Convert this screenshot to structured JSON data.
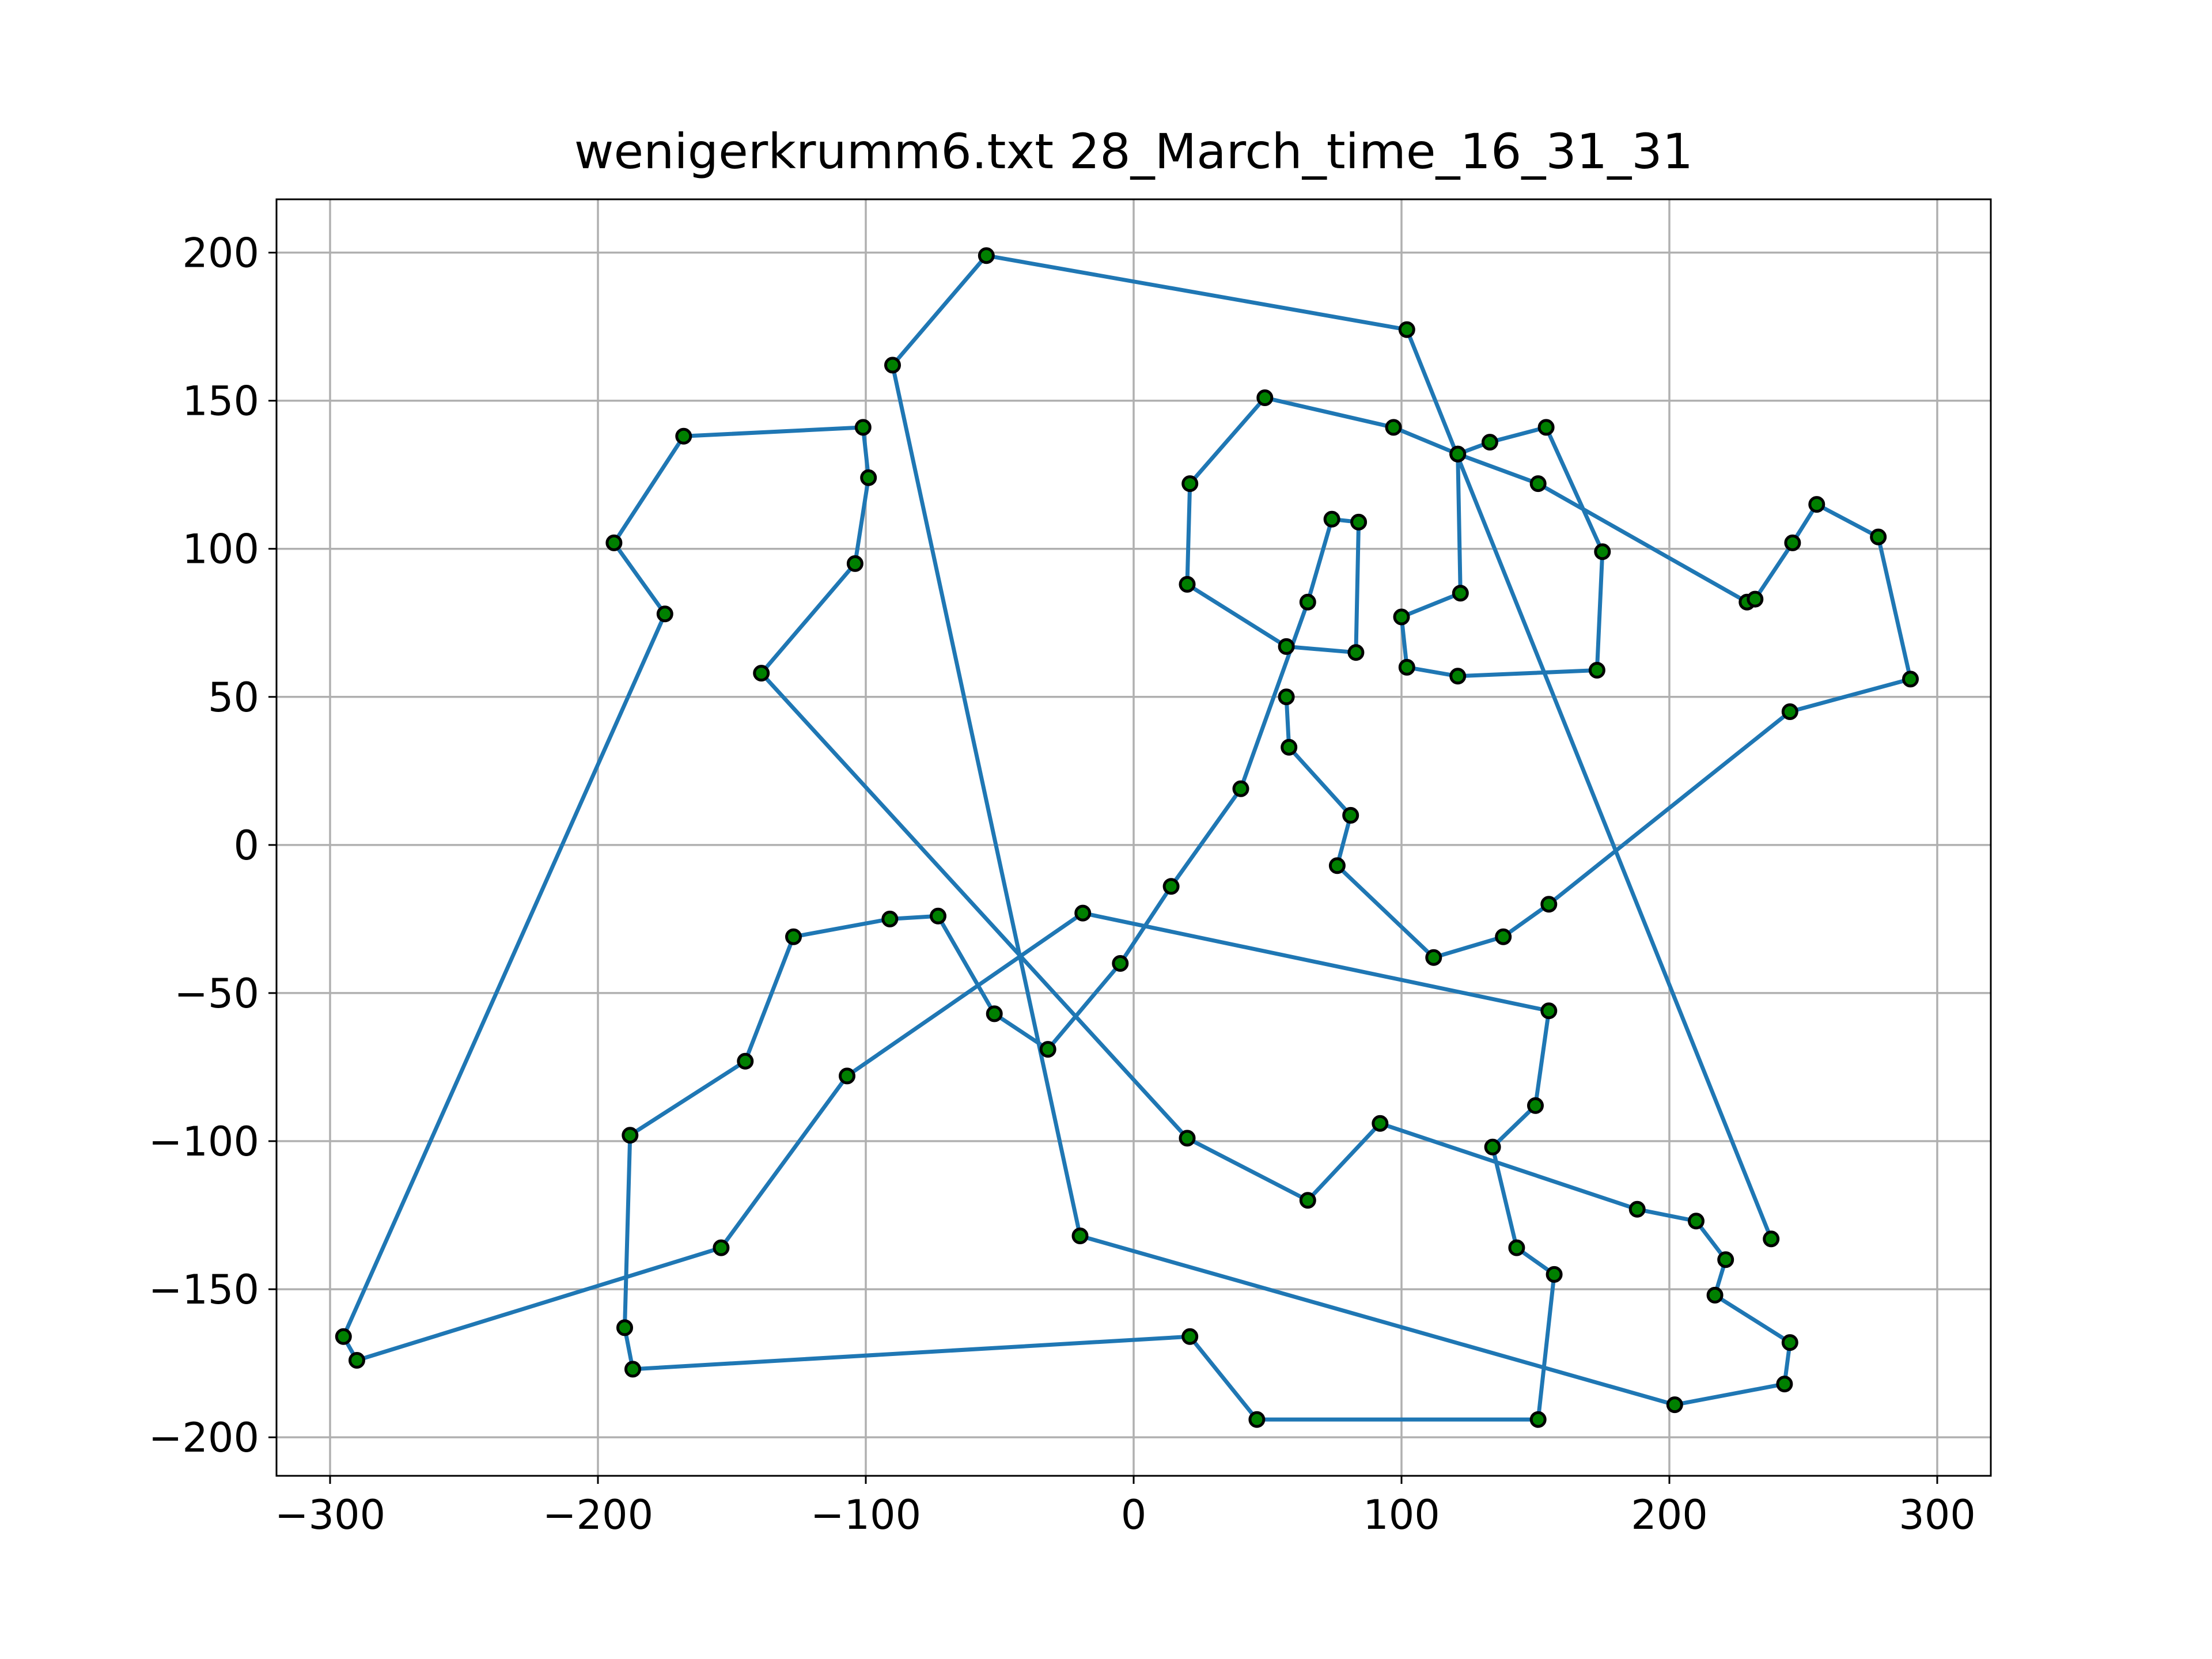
{
  "chart_data": {
    "type": "line",
    "title": "wenigerkrumm6.txt 28_March_time_16_31_31",
    "xlabel": "",
    "ylabel": "",
    "xlim": [
      -320,
      320
    ],
    "ylim": [
      -213,
      218
    ],
    "xticks": [
      -300,
      -200,
      -100,
      0,
      100,
      200,
      300
    ],
    "xtick_labels": [
      "−300",
      "−200",
      "−100",
      "0",
      "100",
      "200",
      "300"
    ],
    "yticks": [
      -200,
      -150,
      -100,
      -50,
      0,
      50,
      100,
      150,
      200
    ],
    "ytick_labels": [
      "−200",
      "−150",
      "−100",
      "−50",
      "0",
      "50",
      "100",
      "150",
      "200"
    ],
    "grid": true,
    "legend": "none",
    "line_color": "#1f77b4",
    "marker_face_color": "#008000",
    "marker_edge_color": "#000000",
    "series": [
      {
        "x": [
          238,
          102,
          -55,
          -90,
          -20,
          202,
          243,
          245,
          217,
          221,
          210,
          188,
          92,
          65,
          20,
          -139,
          -104,
          -99,
          -101,
          -168,
          -194,
          -175,
          -295,
          -290,
          -154,
          -107,
          -19,
          155,
          150,
          134,
          143,
          157,
          151,
          46,
          21,
          -187,
          -190,
          -188,
          -145,
          -127,
          -91,
          -73,
          -52,
          -32,
          -5,
          14,
          40,
          65,
          74,
          84,
          83,
          57,
          20,
          21,
          49,
          97,
          121,
          133,
          154,
          175,
          173,
          121,
          102,
          100,
          122,
          121,
          151,
          229,
          232,
          246,
          255,
          278,
          290,
          245,
          155,
          138,
          112,
          76,
          81,
          58,
          57
        ],
        "y": [
          -133,
          174,
          199,
          162,
          -132,
          -189,
          -182,
          -168,
          -152,
          -140,
          -127,
          -123,
          -94,
          -120,
          -99,
          58,
          95,
          124,
          141,
          138,
          102,
          78,
          -166,
          -174,
          -136,
          -78,
          -23,
          -56,
          -88,
          -102,
          -136,
          -145,
          -194,
          -194,
          -166,
          -177,
          -163,
          -98,
          -73,
          -31,
          -25,
          -24,
          -57,
          -69,
          -40,
          -14,
          19,
          82,
          110,
          109,
          65,
          67,
          88,
          122,
          151,
          141,
          132,
          136,
          141,
          99,
          59,
          57,
          60,
          77,
          85,
          132,
          122,
          82,
          83,
          102,
          115,
          104,
          56,
          45,
          -20,
          -31,
          -38,
          -7,
          10,
          33,
          50
        ]
      }
    ]
  }
}
